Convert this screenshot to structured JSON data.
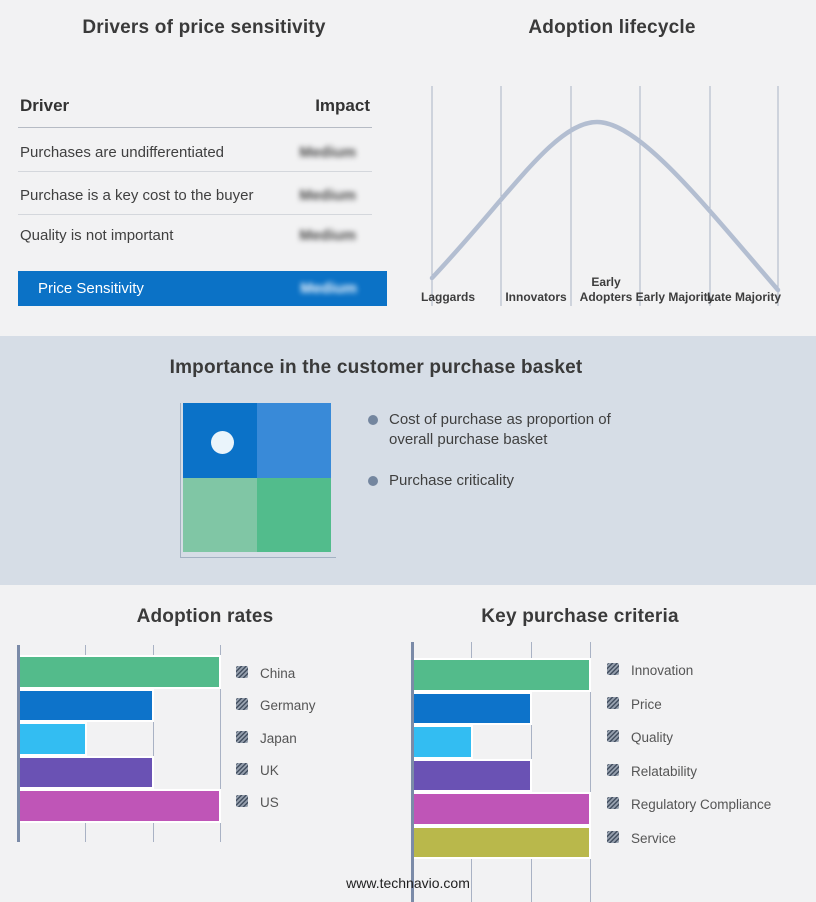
{
  "page": {
    "footer": "www.technavio.com",
    "background": "#f2f2f3",
    "band_background": "#d6dde6",
    "accent_blue": "#0b72c6"
  },
  "drivers_panel": {
    "title": "Drivers of price sensitivity",
    "header": {
      "driver": "Driver",
      "impact": "Impact"
    },
    "rows": [
      {
        "driver": "Purchases are undifferentiated",
        "impact": "Medium",
        "impact_redacted": true
      },
      {
        "driver": "Purchase is a key cost to the buyer",
        "impact": "Medium",
        "impact_redacted": true
      },
      {
        "driver": "Quality is not important",
        "impact": "Medium",
        "impact_redacted": true
      }
    ],
    "summary_row": {
      "label": "Price Sensitivity",
      "impact": "Medium",
      "impact_redacted": true,
      "background": "#0b72c6"
    }
  },
  "lifecycle_panel": {
    "title": "Adoption lifecycle",
    "stages": [
      "Innovators",
      "Early Adopters",
      "Early Majority",
      "Late Majority",
      "Laggards"
    ]
  },
  "basket_panel": {
    "title": "Importance in the customer purchase basket",
    "bullets": [
      "Cost of purchase as proportion of overall purchase basket",
      "Purchase criticality"
    ],
    "quadrant": {
      "top_left_color": "#0b72c8",
      "top_right_color": "#398ad8",
      "bottom_left_color": "#80c6a5",
      "bottom_right_color": "#52bc8c",
      "marker": "white dot in top-left quadrant"
    }
  },
  "chart_data": [
    {
      "id": "adoption-rates",
      "type": "bar",
      "orientation": "horizontal",
      "title": "Adoption rates",
      "categories": [
        "China",
        "Germany",
        "Japan",
        "UK",
        "US"
      ],
      "values": [
        3,
        2,
        1,
        2,
        3
      ],
      "xlim": [
        0,
        3
      ],
      "axis_labels": "none (relative scale, 3 unlabeled gridlines)",
      "colors": [
        "#53bb8b",
        "#0d73ca",
        "#33bdf2",
        "#6a52b4",
        "#bf55b7"
      ],
      "legend_position": "right",
      "legend_swatch_style": "hatched-gray"
    },
    {
      "id": "key-purchase-criteria",
      "type": "bar",
      "orientation": "horizontal",
      "title": "Key purchase criteria",
      "categories": [
        "Innovation",
        "Price",
        "Quality",
        "Relatability",
        "Regulatory Compliance",
        "Service"
      ],
      "values": [
        3,
        2,
        1,
        2,
        3,
        3
      ],
      "xlim": [
        0,
        3
      ],
      "axis_labels": "none (relative scale, 3 unlabeled gridlines)",
      "colors": [
        "#53bb8b",
        "#0d73ca",
        "#33bdf2",
        "#6a52b4",
        "#bf55b7",
        "#b9b84b"
      ],
      "legend_position": "right",
      "legend_swatch_style": "hatched-gray"
    },
    {
      "id": "adoption-lifecycle",
      "type": "line",
      "title": "Adoption lifecycle",
      "x_categories": [
        "Innovators",
        "Early Adopters",
        "Early Majority",
        "Late Majority",
        "Laggards"
      ],
      "shape": "bell curve rising from Innovators, peaking near Early Majority, descending through Laggards",
      "peak_x": "Early Majority",
      "line_color": "#b3bed1",
      "gridlines": "6 vertical category separators, no y axis"
    }
  ]
}
